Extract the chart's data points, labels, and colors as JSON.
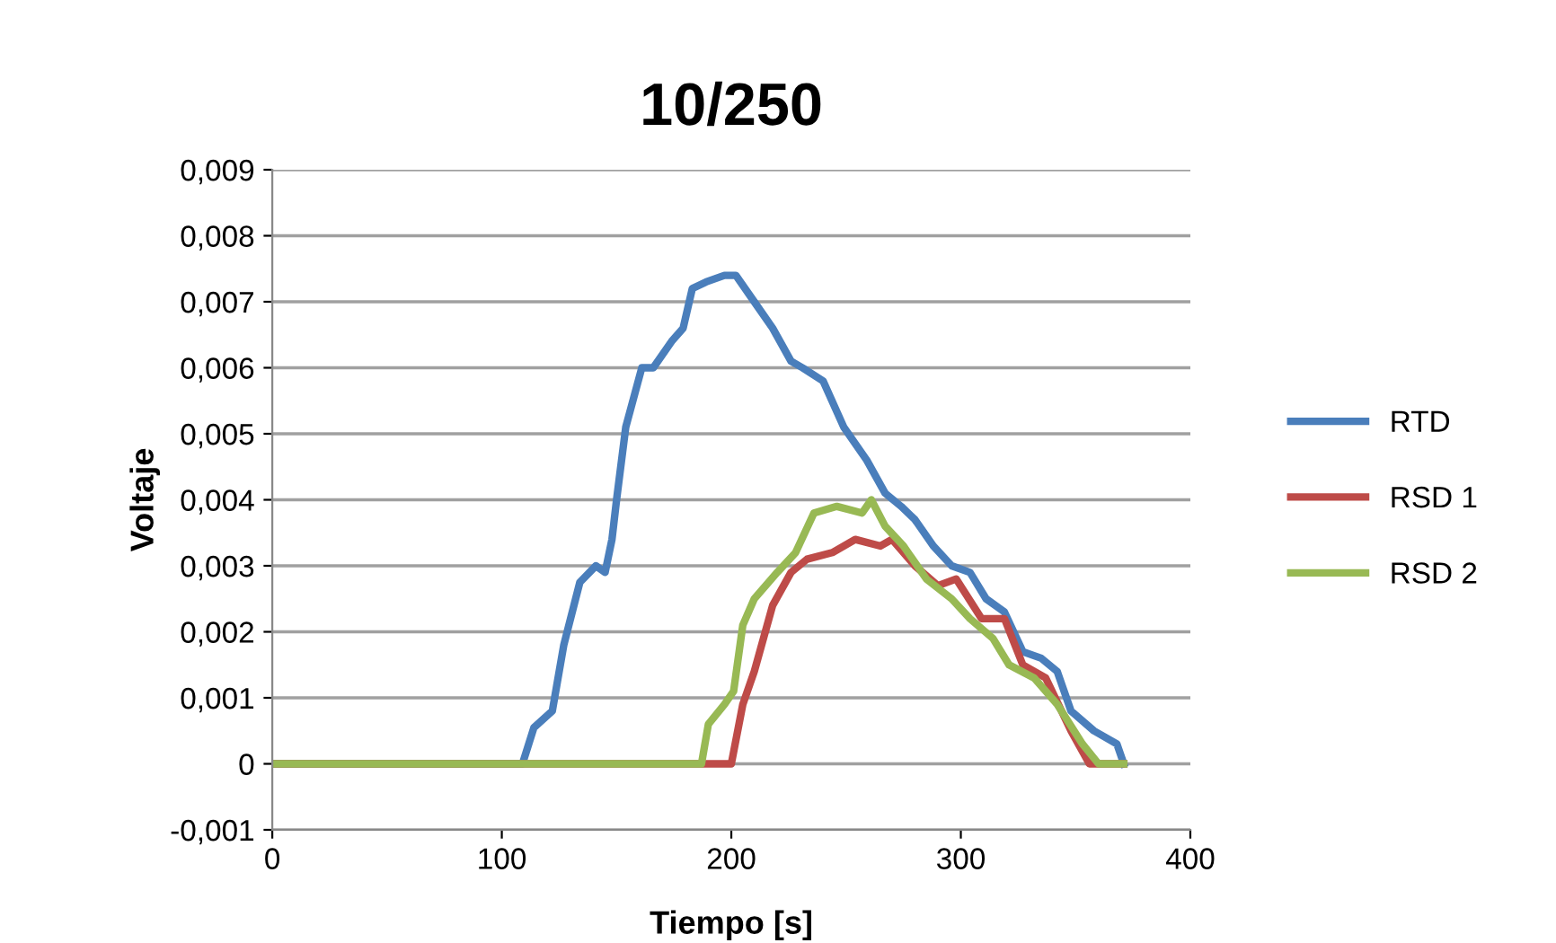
{
  "chart_data": {
    "type": "line",
    "title": "10/250",
    "xlabel": "Tiempo [s]",
    "ylabel": "Voltaje",
    "xlim": [
      0,
      400
    ],
    "xticks": [
      0,
      100,
      200,
      300,
      400
    ],
    "ylim": [
      -0.001,
      0.009
    ],
    "yticks": [
      {
        "value": -0.001,
        "label": "-0,001"
      },
      {
        "value": 0,
        "label": "0"
      },
      {
        "value": 0.001,
        "label": "0,001"
      },
      {
        "value": 0.002,
        "label": "0,002"
      },
      {
        "value": 0.003,
        "label": "0,003"
      },
      {
        "value": 0.004,
        "label": "0,004"
      },
      {
        "value": 0.005,
        "label": "0,005"
      },
      {
        "value": 0.006,
        "label": "0,006"
      },
      {
        "value": 0.007,
        "label": "0,007"
      },
      {
        "value": 0.008,
        "label": "0,008"
      },
      {
        "value": 0.009,
        "label": "0,009"
      }
    ],
    "grid": "y",
    "legend": "right",
    "marker": "none",
    "line_style": "solid",
    "series": [
      {
        "name": "RTD",
        "color": "#4a7ebb",
        "x": [
          0,
          109,
          114,
          122,
          127,
          134,
          141,
          145,
          148,
          150,
          154,
          161,
          166,
          174,
          179,
          183,
          189,
          197,
          202,
          210,
          218,
          226,
          231,
          240,
          249,
          259,
          267,
          274,
          280,
          288,
          296,
          304,
          311,
          319,
          327,
          335,
          342,
          348,
          358,
          368,
          371
        ],
        "values": [
          0,
          0,
          0.00055,
          0.0008,
          0.0018,
          0.00275,
          0.003,
          0.0029,
          0.0034,
          0.004,
          0.0051,
          0.006,
          0.006,
          0.0064,
          0.0066,
          0.0072,
          0.0073,
          0.0074,
          0.0074,
          0.007,
          0.0066,
          0.0061,
          0.006,
          0.0058,
          0.0051,
          0.0046,
          0.0041,
          0.0039,
          0.0037,
          0.0033,
          0.003,
          0.0029,
          0.0025,
          0.0023,
          0.0017,
          0.0016,
          0.0014,
          0.0008,
          0.0005,
          0.0003,
          0
        ]
      },
      {
        "name": "RSD 1",
        "color": "#be4b48",
        "x": [
          0,
          200,
          205,
          210,
          218,
          226,
          233,
          244,
          254,
          265,
          270,
          280,
          290,
          298,
          309,
          319,
          327,
          337,
          348,
          356,
          371
        ],
        "values": [
          0,
          0,
          0.0009,
          0.0014,
          0.0024,
          0.0029,
          0.0031,
          0.0032,
          0.0034,
          0.0033,
          0.0034,
          0.003,
          0.0027,
          0.0028,
          0.0022,
          0.0022,
          0.0015,
          0.0013,
          0.0005,
          0,
          0
        ]
      },
      {
        "name": "RSD 2",
        "color": "#98b954",
        "x": [
          0,
          187,
          190,
          197,
          201,
          205,
          210,
          220,
          228,
          236,
          246,
          257,
          261,
          267,
          275,
          285,
          296,
          304,
          314,
          321,
          332,
          342,
          353,
          360,
          371
        ],
        "values": [
          0,
          0,
          0.0006,
          0.0009,
          0.0011,
          0.0021,
          0.0025,
          0.0029,
          0.0032,
          0.0038,
          0.0039,
          0.0038,
          0.004,
          0.0036,
          0.0033,
          0.0028,
          0.0025,
          0.0022,
          0.0019,
          0.0015,
          0.0013,
          0.0009,
          0.0003,
          0,
          0
        ]
      }
    ]
  }
}
